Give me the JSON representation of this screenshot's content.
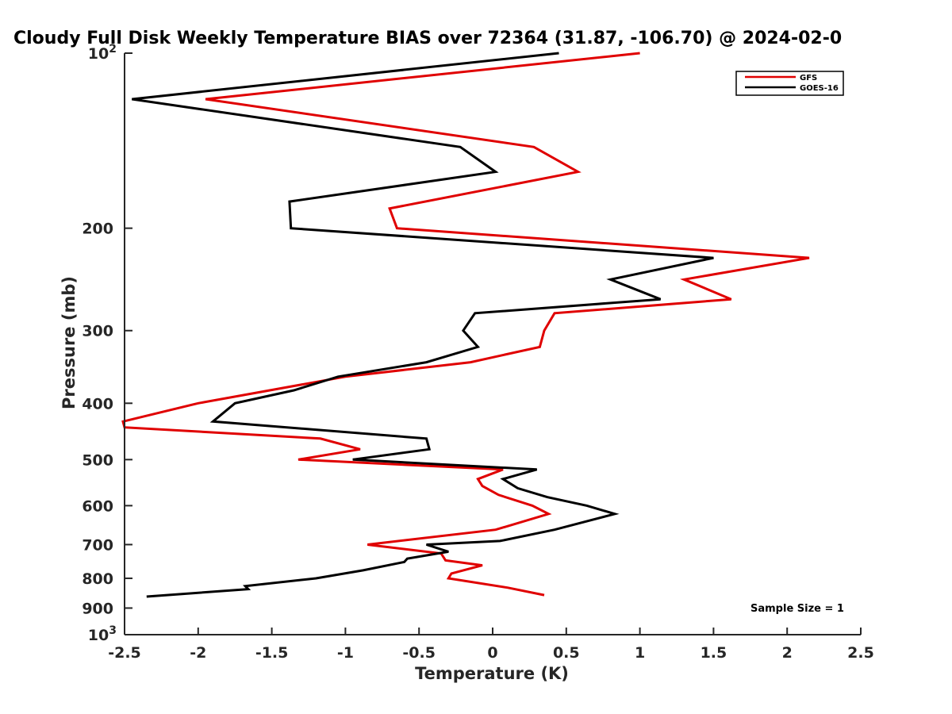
{
  "chart_data": {
    "type": "line",
    "title": "Cloudy Full Disk Weekly Temperature BIAS over 72364 (31.87, -106.70) @ 2024-02-0",
    "xlabel": "Temperature (K)",
    "ylabel": "Pressure (mb)",
    "xlim": [
      -2.5,
      2.5
    ],
    "ylim": [
      100,
      1000
    ],
    "y_scale": "log",
    "y_reversed": true,
    "x_ticks": [
      "-2.5",
      "-2",
      "-1.5",
      "-1",
      "-0.5",
      "0",
      "0.5",
      "1",
      "1.5",
      "2",
      "2.5"
    ],
    "y_ticks": [
      {
        "value": 100,
        "base": "10",
        "exp": "2",
        "label": ""
      },
      {
        "value": 200,
        "label": "200"
      },
      {
        "value": 300,
        "label": "300"
      },
      {
        "value": 400,
        "label": "400"
      },
      {
        "value": 500,
        "label": "500"
      },
      {
        "value": 600,
        "label": "600"
      },
      {
        "value": 700,
        "label": "700"
      },
      {
        "value": 800,
        "label": "800"
      },
      {
        "value": 900,
        "label": "900"
      },
      {
        "value": 1000,
        "base": "10",
        "exp": "3",
        "label": ""
      }
    ],
    "legend_position": "top-right",
    "annotation": "Sample Size = 1",
    "series": [
      {
        "name": "GFS",
        "color": "#e00000",
        "x": [
          1.0,
          -1.95,
          0.28,
          0.58,
          -0.7,
          -0.65,
          2.15,
          1.3,
          1.62,
          0.42,
          0.35,
          0.32,
          -0.15,
          -1.0,
          -2.0,
          -2.55,
          -2.5,
          -1.17,
          -0.9,
          -1.32,
          0.07,
          -0.1,
          -0.07,
          0.04,
          0.27,
          0.38,
          0.02,
          -0.85,
          -0.35,
          -0.32,
          -0.07,
          -0.28,
          -0.3,
          0.1,
          0.35
        ],
        "y": [
          100,
          120,
          145,
          160,
          185,
          200,
          225,
          245,
          265,
          280,
          300,
          320,
          340,
          360,
          400,
          430,
          440,
          460,
          480,
          500,
          520,
          540,
          555,
          575,
          600,
          620,
          660,
          700,
          725,
          745,
          760,
          785,
          800,
          830,
          855
        ]
      },
      {
        "name": "GOES-16",
        "color": "#000000",
        "x": [
          0.45,
          -2.45,
          -0.22,
          0.02,
          -1.38,
          -1.37,
          1.5,
          0.8,
          1.14,
          -0.12,
          -0.2,
          -0.1,
          -0.45,
          -1.05,
          -1.35,
          -1.75,
          -1.9,
          -0.45,
          -0.43,
          -0.95,
          0.3,
          0.07,
          0.17,
          0.37,
          0.64,
          0.83,
          0.42,
          0.05,
          -0.45,
          -0.3,
          -0.58,
          -0.6,
          -0.88,
          -1.2,
          -1.68,
          -1.66,
          -2.35
        ],
        "y": [
          100,
          120,
          145,
          160,
          180,
          200,
          225,
          245,
          265,
          280,
          300,
          320,
          340,
          360,
          380,
          400,
          430,
          460,
          480,
          500,
          520,
          540,
          560,
          580,
          600,
          620,
          660,
          690,
          700,
          720,
          740,
          750,
          775,
          800,
          825,
          835,
          860
        ]
      }
    ]
  }
}
